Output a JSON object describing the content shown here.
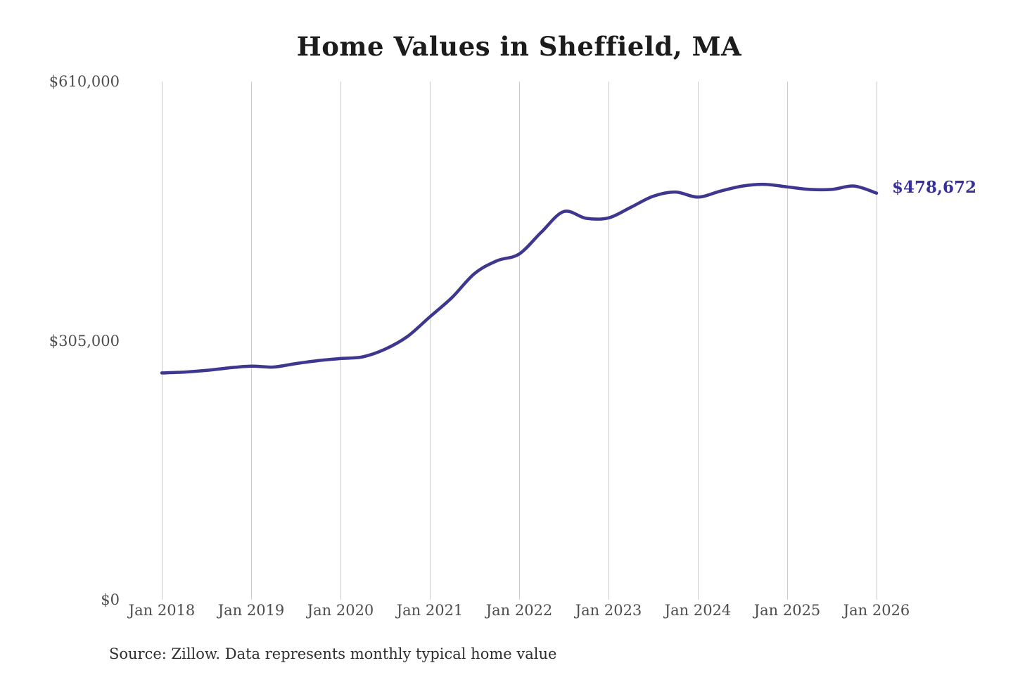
{
  "chart_data": {
    "type": "line",
    "title": "Home Values in Sheffield, MA",
    "xlabel": "",
    "ylabel": "",
    "ylim": [
      0,
      610000
    ],
    "xlim_months": [
      0,
      96
    ],
    "grid": "vertical-only",
    "gridline_color": "#cccccc",
    "tick_label_color": "#4d4d4d",
    "legend": "none",
    "x_tick_labels": [
      "Jan 2018",
      "Jan 2019",
      "Jan 2020",
      "Jan 2021",
      "Jan 2022",
      "Jan 2023",
      "Jan 2024",
      "Jan 2025",
      "Jan 2026"
    ],
    "x_tick_month_offsets": [
      0,
      12,
      24,
      36,
      48,
      60,
      72,
      84,
      96
    ],
    "y_ticks": [
      {
        "label": "$0",
        "value": 0
      },
      {
        "label": "$305,000",
        "value": 305000
      },
      {
        "label": "$610,000",
        "value": 610000
      }
    ],
    "series": [
      {
        "name": "Monthly typical home value",
        "color": "#3e3790",
        "month_offsets": [
          0,
          3,
          6,
          9,
          12,
          15,
          18,
          21,
          24,
          27,
          30,
          33,
          36,
          39,
          42,
          45,
          48,
          51,
          54,
          57,
          60,
          63,
          66,
          69,
          72,
          75,
          78,
          81,
          84,
          87,
          90,
          93,
          96
        ],
        "values": [
          267000,
          268000,
          270000,
          273000,
          275000,
          274000,
          278000,
          281500,
          284000,
          286000,
          295000,
          310000,
          333000,
          356000,
          384000,
          399000,
          407000,
          433000,
          457000,
          449000,
          449500,
          462000,
          475000,
          480000,
          474000,
          481000,
          487000,
          489000,
          486000,
          483000,
          483000,
          487000,
          478672
        ]
      }
    ],
    "end_label": "$478,672",
    "end_value": 478672
  },
  "footer": {
    "source_text": "Source: Zillow. Data represents monthly typical home value"
  }
}
